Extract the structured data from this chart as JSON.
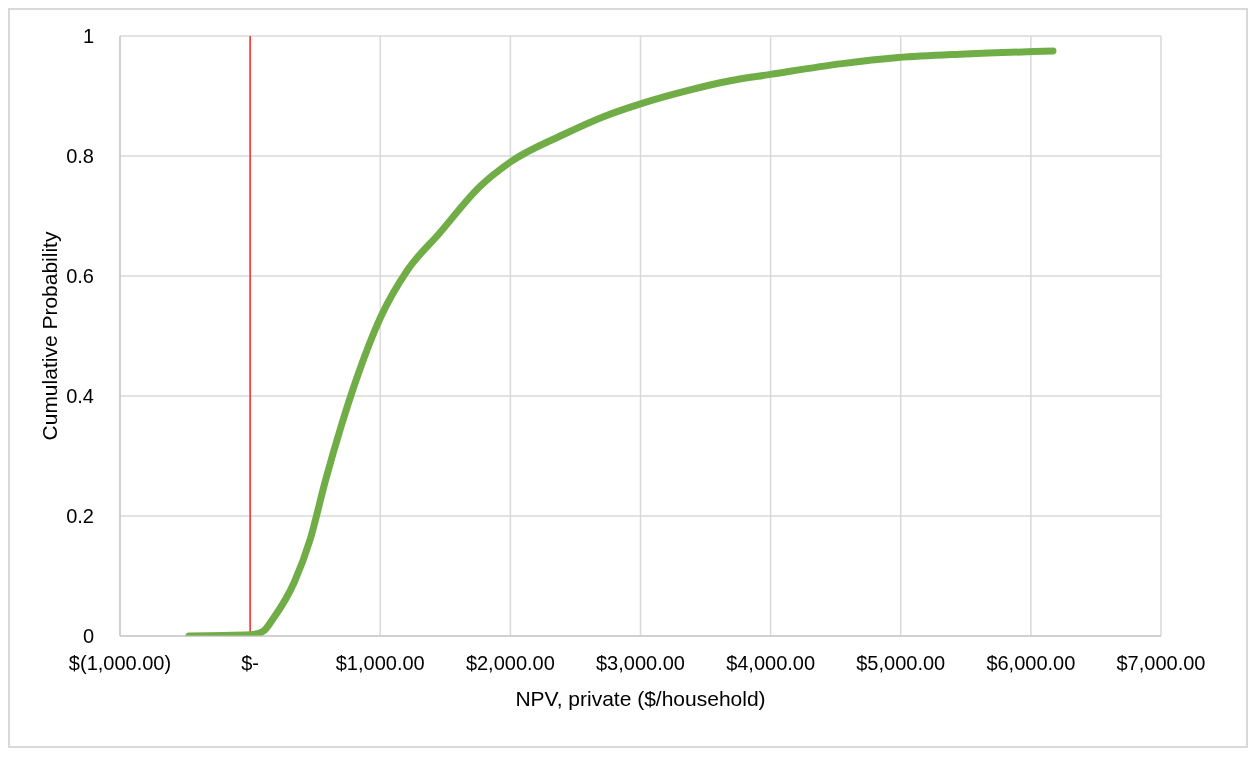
{
  "chart_data": {
    "type": "line",
    "xlabel": "NPV, private ($/household)",
    "ylabel": "Cumulative Probability",
    "x": [
      -470,
      0,
      100,
      180,
      340,
      460,
      580,
      700,
      820,
      1000,
      1210,
      1450,
      1770,
      2000,
      2400,
      2720,
      3000,
      3360,
      3680,
      4000,
      4550,
      4980,
      5500,
      6170
    ],
    "series": [
      {
        "color": "#70ad47",
        "values": [
          0,
          0.002,
          0.008,
          0.03,
          0.09,
          0.16,
          0.26,
          0.35,
          0.43,
          0.53,
          0.61,
          0.67,
          0.75,
          0.79,
          0.835,
          0.866,
          0.887,
          0.909,
          0.925,
          0.936,
          0.954,
          0.964,
          0.97,
          0.975
        ]
      }
    ],
    "xlim": [
      -1000,
      7000
    ],
    "xticks": [
      {
        "value": -1000,
        "label": "$(1,000.00)"
      },
      {
        "value": 0,
        "label": "$-"
      },
      {
        "value": 1000,
        "label": "$1,000.00"
      },
      {
        "value": 2000,
        "label": "$2,000.00"
      },
      {
        "value": 3000,
        "label": "$3,000.00"
      },
      {
        "value": 4000,
        "label": "$4,000.00"
      },
      {
        "value": 5000,
        "label": "$5,000.00"
      },
      {
        "value": 6000,
        "label": "$6,000.00"
      },
      {
        "value": 7000,
        "label": "$7,000.00"
      }
    ],
    "ylim": [
      0,
      1
    ],
    "yticks": [
      0,
      0.2,
      0.4,
      0.6,
      0.8,
      1
    ],
    "grid": true,
    "marker": "none",
    "line_style": "solid",
    "ref_lines": [
      {
        "axis": "x",
        "value": 0,
        "color": "#ff0000"
      }
    ]
  }
}
